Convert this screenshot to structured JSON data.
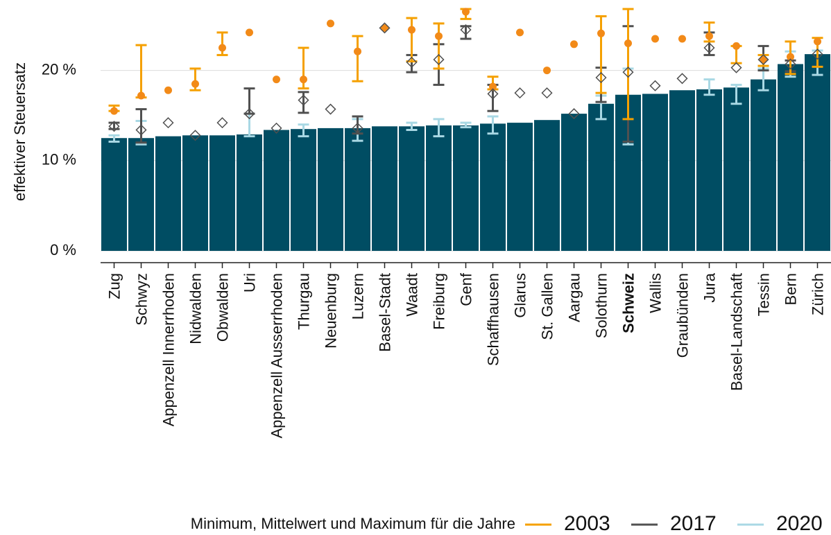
{
  "chart_data": {
    "type": "bar",
    "y_label": "effektiver Steuersatz",
    "legend_title": "Minimum, Mittelwert und Maximum für die Jahre",
    "categories": [
      "Zug",
      "Schwyz",
      "Appenzell Innerrhoden",
      "Nidwalden",
      "Obwalden",
      "Uri",
      "Appenzell Ausserrhoden",
      "Thurgau",
      "Neuenburg",
      "Luzern",
      "Basel-Stadt",
      "Waadt",
      "Freiburg",
      "Genf",
      "Schaffhausen",
      "Glarus",
      "St. Gallen",
      "Aargau",
      "Solothurn",
      "Schweiz",
      "Wallis",
      "Graubünden",
      "Jura",
      "Basel-Landschaft",
      "Tessin",
      "Bern",
      "Zürich"
    ],
    "bold_category": 19,
    "ylim": [
      0,
      27.8
    ],
    "yticks": [
      {
        "value": 0,
        "label": "0 %"
      },
      {
        "value": 10,
        "label": "10 %"
      },
      {
        "value": 20,
        "label": "20 %"
      }
    ],
    "grid": true,
    "series": [
      {
        "name": "2003",
        "color": "#f5a000",
        "marker_color": "#f28a18",
        "marker": "dot",
        "values": [
          15.5,
          17.2,
          17.8,
          18.5,
          22.5,
          24.2,
          19.0,
          19.0,
          25.2,
          22.1,
          24.7,
          24.5,
          23.8,
          26.5,
          18.2,
          24.2,
          20.0,
          22.9,
          24.1,
          23.0,
          23.5,
          23.5,
          23.8,
          22.7,
          21.2,
          21.5,
          23.2
        ],
        "min": [
          15.5,
          17.0,
          null,
          17.8,
          21.7,
          null,
          null,
          18.0,
          null,
          18.8,
          null,
          21.0,
          20.2,
          25.7,
          17.9,
          null,
          null,
          null,
          17.5,
          14.6,
          null,
          null,
          23.2,
          20.8,
          20.5,
          19.6,
          20.4
        ],
        "max": [
          16.1,
          22.8,
          null,
          20.2,
          24.2,
          null,
          null,
          22.5,
          null,
          23.8,
          null,
          25.8,
          25.2,
          26.8,
          19.3,
          null,
          null,
          null,
          26.0,
          26.8,
          null,
          null,
          25.3,
          22.7,
          21.7,
          23.2,
          23.6
        ]
      },
      {
        "name": "2017",
        "color": "#505050",
        "marker_color": "#505050",
        "marker": "diamond",
        "values": [
          13.8,
          13.4,
          14.2,
          12.8,
          14.2,
          15.2,
          13.6,
          16.7,
          15.7,
          13.6,
          24.7,
          20.9,
          21.2,
          24.5,
          17.4,
          17.5,
          17.5,
          15.2,
          19.2,
          19.8,
          18.3,
          19.1,
          22.5,
          20.3,
          21.2,
          20.7,
          21.8
        ],
        "min": [
          13.5,
          12.0,
          null,
          null,
          null,
          15.2,
          null,
          15.3,
          null,
          13.0,
          null,
          19.8,
          18.4,
          23.5,
          15.5,
          null,
          null,
          null,
          16.5,
          12.1,
          null,
          null,
          21.7,
          null,
          20.0,
          19.9,
          null
        ],
        "max": [
          14.2,
          15.7,
          null,
          null,
          null,
          18.0,
          null,
          17.6,
          null,
          14.9,
          null,
          21.7,
          22.9,
          24.9,
          18.4,
          null,
          null,
          null,
          20.3,
          24.9,
          null,
          null,
          24.2,
          null,
          22.7,
          21.1,
          null
        ]
      },
      {
        "name": "2020",
        "color": "#a9d8e4",
        "marker_color": "#004d63",
        "marker": "bar",
        "values": [
          12.5,
          12.5,
          12.7,
          12.8,
          12.8,
          12.9,
          13.4,
          13.5,
          13.6,
          13.6,
          13.8,
          13.8,
          13.9,
          13.9,
          14.1,
          14.2,
          14.5,
          15.2,
          16.3,
          17.3,
          17.4,
          17.8,
          17.9,
          18.1,
          19.0,
          20.7,
          21.8
        ],
        "min": [
          12.1,
          11.8,
          null,
          null,
          null,
          12.7,
          null,
          12.7,
          null,
          12.2,
          null,
          13.4,
          12.7,
          13.7,
          13.0,
          null,
          null,
          null,
          14.6,
          11.8,
          null,
          null,
          17.3,
          16.3,
          17.8,
          19.3,
          19.5
        ],
        "max": [
          12.8,
          14.4,
          null,
          null,
          null,
          15.2,
          null,
          14.0,
          null,
          14.6,
          null,
          14.2,
          14.6,
          14.2,
          14.9,
          null,
          null,
          null,
          17.2,
          20.2,
          null,
          null,
          19.0,
          18.4,
          20.2,
          22.1,
          22.2
        ]
      }
    ]
  }
}
